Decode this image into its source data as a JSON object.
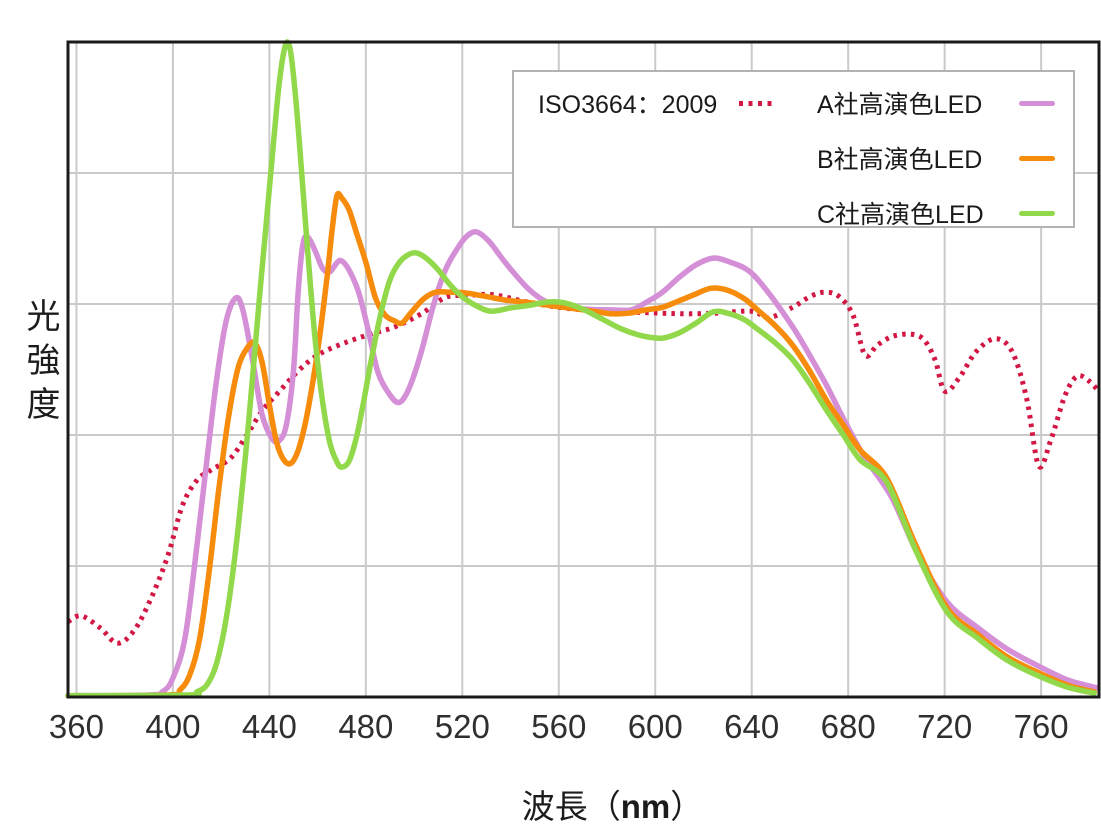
{
  "chart_data": {
    "type": "line",
    "title": "",
    "xlabel": {
      "prefix": "波長（",
      "bold": "nm",
      "suffix": "）"
    },
    "ylabel": "光強度",
    "xlim": [
      356.5,
      784
    ],
    "ylim": [
      0,
      100
    ],
    "x_ticks": [
      360,
      400,
      440,
      480,
      520,
      560,
      600,
      640,
      680,
      720,
      760
    ],
    "y_gridlines": [
      20,
      40,
      60,
      80
    ],
    "grid": true,
    "legend_position": "top-right-inside",
    "colors": {
      "grid": "#cacaca",
      "border": "#1a1a1a",
      "tick_text": "#2f2f2f"
    },
    "series": [
      {
        "name": "ISO3664：2009",
        "color": "#d31745",
        "style": "dotted",
        "points": [
          [
            356.5,
            11.5
          ],
          [
            362,
            12.4
          ],
          [
            370,
            10.5
          ],
          [
            377,
            8.2
          ],
          [
            384,
            10.2
          ],
          [
            391,
            15.1
          ],
          [
            398,
            21.7
          ],
          [
            404,
            29.3
          ],
          [
            410,
            33.1
          ],
          [
            416,
            34.7
          ],
          [
            424,
            36.5
          ],
          [
            431,
            40.2
          ],
          [
            437,
            43.7
          ],
          [
            444,
            46.6
          ],
          [
            452,
            49.8
          ],
          [
            460,
            52.2
          ],
          [
            470,
            53.9
          ],
          [
            481,
            55.3
          ],
          [
            492,
            56.5
          ],
          [
            503,
            58.5
          ],
          [
            513,
            61.0
          ],
          [
            522,
            61.3
          ],
          [
            533,
            61.4
          ],
          [
            547,
            60.3
          ],
          [
            562,
            59.4
          ],
          [
            578,
            58.9
          ],
          [
            595,
            58.7
          ],
          [
            612,
            58.5
          ],
          [
            625,
            58.6
          ],
          [
            640,
            58.9
          ],
          [
            647,
            57.9
          ],
          [
            657,
            59.5
          ],
          [
            664,
            61.1
          ],
          [
            670,
            61.8
          ],
          [
            676,
            61.2
          ],
          [
            682,
            58.3
          ],
          [
            687,
            52.2
          ],
          [
            692,
            53.7
          ],
          [
            698,
            55.0
          ],
          [
            705,
            55.4
          ],
          [
            711,
            54.7
          ],
          [
            716,
            51.5
          ],
          [
            720,
            46.7
          ],
          [
            726,
            48.7
          ],
          [
            733,
            52.7
          ],
          [
            741,
            54.7
          ],
          [
            748,
            52.7
          ],
          [
            754,
            45.6
          ],
          [
            759,
            35.3
          ],
          [
            764,
            39.2
          ],
          [
            770,
            46.1
          ],
          [
            775,
            49.0
          ],
          [
            780,
            48.2
          ],
          [
            784,
            46.6
          ]
        ]
      },
      {
        "name": "A社高演色LED",
        "color": "#d48fd6",
        "style": "solid",
        "points": [
          [
            356.5,
            0.2
          ],
          [
            390,
            0.3
          ],
          [
            396,
            0.9
          ],
          [
            400,
            2.9
          ],
          [
            405,
            9.0
          ],
          [
            410,
            23.2
          ],
          [
            414,
            35.9
          ],
          [
            418,
            48.1
          ],
          [
            422,
            57.3
          ],
          [
            426,
            60.9
          ],
          [
            429,
            59.1
          ],
          [
            433,
            51.5
          ],
          [
            437,
            43.1
          ],
          [
            441,
            39.5
          ],
          [
            444,
            39.1
          ],
          [
            447,
            41.5
          ],
          [
            450,
            49.9
          ],
          [
            452,
            62.1
          ],
          [
            454,
            69.3
          ],
          [
            456,
            70.2
          ],
          [
            459,
            68.1
          ],
          [
            462,
            65.5
          ],
          [
            465,
            64.9
          ],
          [
            468,
            66.3
          ],
          [
            470,
            66.6
          ],
          [
            473,
            65.2
          ],
          [
            477,
            61.8
          ],
          [
            481,
            56.0
          ],
          [
            485,
            49.6
          ],
          [
            490,
            46.1
          ],
          [
            494,
            45.0
          ],
          [
            498,
            47.2
          ],
          [
            503,
            52.7
          ],
          [
            508,
            59.8
          ],
          [
            513,
            65.2
          ],
          [
            518,
            68.5
          ],
          [
            522,
            70.4
          ],
          [
            526,
            71.0
          ],
          [
            531,
            69.6
          ],
          [
            536,
            67.2
          ],
          [
            541,
            64.9
          ],
          [
            548,
            62.1
          ],
          [
            555,
            60.3
          ],
          [
            563,
            59.5
          ],
          [
            572,
            59.2
          ],
          [
            582,
            59.1
          ],
          [
            590,
            59.1
          ],
          [
            596,
            60.2
          ],
          [
            603,
            61.8
          ],
          [
            610,
            64.1
          ],
          [
            617,
            66.0
          ],
          [
            624,
            67.0
          ],
          [
            631,
            66.4
          ],
          [
            639,
            65.0
          ],
          [
            647,
            61.7
          ],
          [
            657,
            56.5
          ],
          [
            664,
            52.2
          ],
          [
            671,
            47.6
          ],
          [
            679,
            41.8
          ],
          [
            687,
            36.5
          ],
          [
            698,
            30.5
          ],
          [
            709,
            21.7
          ],
          [
            721,
            14.5
          ],
          [
            734,
            10.5
          ],
          [
            746,
            7.3
          ],
          [
            759,
            4.7
          ],
          [
            771,
            2.6
          ],
          [
            783,
            1.4
          ]
        ]
      },
      {
        "name": "B社高演色LED",
        "color": "#f68b0c",
        "style": "solid",
        "points": [
          [
            356.5,
            0.2
          ],
          [
            398,
            0.3
          ],
          [
            403,
            1.1
          ],
          [
            407,
            3.4
          ],
          [
            411,
            8.7
          ],
          [
            415,
            19.1
          ],
          [
            419,
            31.6
          ],
          [
            423,
            42.6
          ],
          [
            427,
            50.2
          ],
          [
            431,
            53.4
          ],
          [
            434,
            54.0
          ],
          [
            437,
            51.1
          ],
          [
            440,
            44.6
          ],
          [
            443,
            38.9
          ],
          [
            446,
            36.2
          ],
          [
            449,
            35.7
          ],
          [
            452,
            37.7
          ],
          [
            455,
            42.0
          ],
          [
            458,
            48.1
          ],
          [
            461,
            55.4
          ],
          [
            464,
            64.4
          ],
          [
            466,
            71.3
          ],
          [
            468,
            76.5
          ],
          [
            470,
            76.2
          ],
          [
            473,
            74.4
          ],
          [
            476,
            71.0
          ],
          [
            480,
            66.4
          ],
          [
            484,
            60.9
          ],
          [
            488,
            58.3
          ],
          [
            492,
            57.4
          ],
          [
            495,
            57.1
          ],
          [
            499,
            58.8
          ],
          [
            504,
            60.8
          ],
          [
            509,
            61.8
          ],
          [
            515,
            61.8
          ],
          [
            521,
            61.7
          ],
          [
            529,
            61.2
          ],
          [
            538,
            60.6
          ],
          [
            548,
            60.2
          ],
          [
            558,
            59.7
          ],
          [
            568,
            59.2
          ],
          [
            576,
            58.8
          ],
          [
            582,
            58.5
          ],
          [
            589,
            58.6
          ],
          [
            596,
            59.1
          ],
          [
            603,
            59.5
          ],
          [
            610,
            60.5
          ],
          [
            616,
            61.4
          ],
          [
            623,
            62.4
          ],
          [
            630,
            62.1
          ],
          [
            637,
            60.8
          ],
          [
            643,
            58.9
          ],
          [
            650,
            56.6
          ],
          [
            657,
            53.7
          ],
          [
            664,
            49.8
          ],
          [
            671,
            45.3
          ],
          [
            678,
            41.5
          ],
          [
            685,
            37.7
          ],
          [
            696,
            33.4
          ],
          [
            708,
            23.2
          ],
          [
            721,
            13.6
          ],
          [
            734,
            9.5
          ],
          [
            746,
            6.1
          ],
          [
            759,
            3.7
          ],
          [
            771,
            1.8
          ],
          [
            782,
            0.8
          ]
        ]
      },
      {
        "name": "C社高演色LED",
        "color": "#92d84b",
        "style": "solid",
        "points": [
          [
            356.5,
            0.2
          ],
          [
            406,
            0.3
          ],
          [
            410,
            0.8
          ],
          [
            414,
            1.8
          ],
          [
            418,
            5.0
          ],
          [
            422,
            11.8
          ],
          [
            426,
            22.4
          ],
          [
            430,
            36.5
          ],
          [
            433,
            48.7
          ],
          [
            436,
            61.4
          ],
          [
            439,
            73.6
          ],
          [
            442,
            85.8
          ],
          [
            444,
            93.4
          ],
          [
            446,
            98.5
          ],
          [
            447.5,
            100
          ],
          [
            449,
            98.0
          ],
          [
            451,
            91.1
          ],
          [
            453,
            82.0
          ],
          [
            456,
            67.5
          ],
          [
            459,
            54.5
          ],
          [
            462,
            45.3
          ],
          [
            465,
            38.9
          ],
          [
            468,
            35.9
          ],
          [
            470,
            35.1
          ],
          [
            473,
            36.0
          ],
          [
            476,
            39.5
          ],
          [
            479,
            44.9
          ],
          [
            482,
            51.0
          ],
          [
            486,
            58.2
          ],
          [
            490,
            63.7
          ],
          [
            494,
            66.4
          ],
          [
            498,
            67.6
          ],
          [
            501,
            67.8
          ],
          [
            505,
            67.0
          ],
          [
            510,
            65.2
          ],
          [
            515,
            62.9
          ],
          [
            520,
            61.1
          ],
          [
            526,
            59.7
          ],
          [
            532,
            58.9
          ],
          [
            540,
            59.4
          ],
          [
            548,
            59.8
          ],
          [
            555,
            60.3
          ],
          [
            562,
            60.2
          ],
          [
            570,
            59.2
          ],
          [
            578,
            57.7
          ],
          [
            586,
            56.2
          ],
          [
            595,
            55.1
          ],
          [
            603,
            54.8
          ],
          [
            610,
            55.6
          ],
          [
            617,
            57.1
          ],
          [
            624,
            58.8
          ],
          [
            630,
            58.6
          ],
          [
            637,
            57.6
          ],
          [
            643,
            56.0
          ],
          [
            650,
            54.0
          ],
          [
            657,
            51.5
          ],
          [
            664,
            47.9
          ],
          [
            671,
            43.8
          ],
          [
            678,
            40.0
          ],
          [
            685,
            36.2
          ],
          [
            696,
            32.8
          ],
          [
            708,
            22.4
          ],
          [
            721,
            13.0
          ],
          [
            734,
            8.9
          ],
          [
            746,
            5.6
          ],
          [
            759,
            3.2
          ],
          [
            771,
            1.5
          ],
          [
            782,
            0.6
          ]
        ]
      }
    ]
  }
}
